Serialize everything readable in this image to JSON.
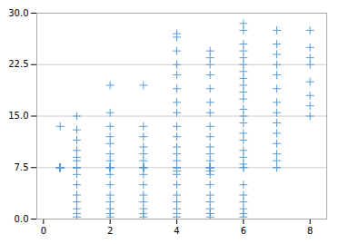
{
  "chart_data": {
    "type": "scatter",
    "x": [
      0.5,
      1.0,
      2.0,
      3.0,
      4.0,
      5.0,
      6.0,
      7.0,
      8.0
    ],
    "values": [
      [
        7.5,
        7.5,
        7.5,
        7.5,
        7.5,
        7.5,
        7.5,
        7.5,
        7.5,
        13.5
      ],
      [
        0.3,
        0.8,
        1.5,
        2.5,
        3.5,
        5.0,
        6.5,
        7.5,
        7.5,
        7.5,
        7.5,
        7.5,
        8.5,
        9.0,
        10.0,
        11.5,
        13.0,
        15.0
      ],
      [
        0.3,
        0.8,
        1.5,
        2.5,
        3.5,
        5.0,
        6.5,
        7.5,
        7.5,
        7.5,
        7.5,
        7.5,
        8.5,
        9.5,
        11.0,
        12.0,
        13.5,
        15.5,
        19.5
      ],
      [
        0.3,
        0.8,
        1.5,
        2.5,
        3.5,
        5.0,
        6.5,
        7.5,
        7.5,
        7.5,
        7.5,
        7.5,
        8.5,
        9.5,
        10.5,
        12.0,
        13.5,
        19.5
      ],
      [
        0.3,
        0.8,
        1.5,
        2.5,
        3.5,
        5.0,
        6.5,
        7.0,
        7.5,
        7.5,
        7.5,
        7.5,
        7.5,
        8.5,
        9.5,
        10.5,
        12.0,
        13.5,
        15.5,
        17.0,
        19.0,
        21.0,
        22.5,
        24.5,
        26.5,
        27.0
      ],
      [
        0.3,
        0.8,
        1.5,
        2.5,
        3.5,
        5.0,
        6.5,
        7.0,
        7.5,
        7.5,
        7.5,
        7.5,
        7.5,
        8.5,
        9.5,
        10.5,
        12.0,
        13.5,
        15.5,
        17.0,
        19.0,
        21.0,
        22.5,
        23.5,
        24.5
      ],
      [
        0.3,
        0.8,
        1.5,
        2.5,
        3.5,
        5.0,
        7.5,
        7.5,
        8.0,
        9.0,
        10.0,
        11.5,
        12.5,
        14.0,
        15.0,
        16.0,
        17.5,
        18.5,
        19.5,
        20.5,
        21.5,
        22.5,
        23.5,
        24.5,
        25.5,
        27.5,
        28.5
      ],
      [
        7.5,
        7.5,
        8.5,
        9.5,
        11.0,
        12.5,
        14.0,
        15.5,
        17.0,
        19.0,
        21.0,
        22.5,
        24.0,
        25.5,
        27.5
      ],
      [
        15.0,
        16.5,
        18.0,
        20.0,
        22.5,
        23.5,
        25.0,
        27.5
      ]
    ],
    "color": "#5b9bd5",
    "marker": "+",
    "xlim": [
      -0.2,
      8.5
    ],
    "ylim": [
      0,
      30
    ],
    "xticks": [
      0,
      2,
      4,
      6,
      8
    ],
    "yticks": [
      {
        "value": 0,
        "label": "0.0"
      },
      {
        "value": 7.5,
        "label": "7.5"
      },
      {
        "value": 15,
        "label": "15.0"
      },
      {
        "value": 22.5,
        "label": "22.5"
      },
      {
        "value": 30,
        "label": "30.0"
      }
    ],
    "grid": "y"
  }
}
